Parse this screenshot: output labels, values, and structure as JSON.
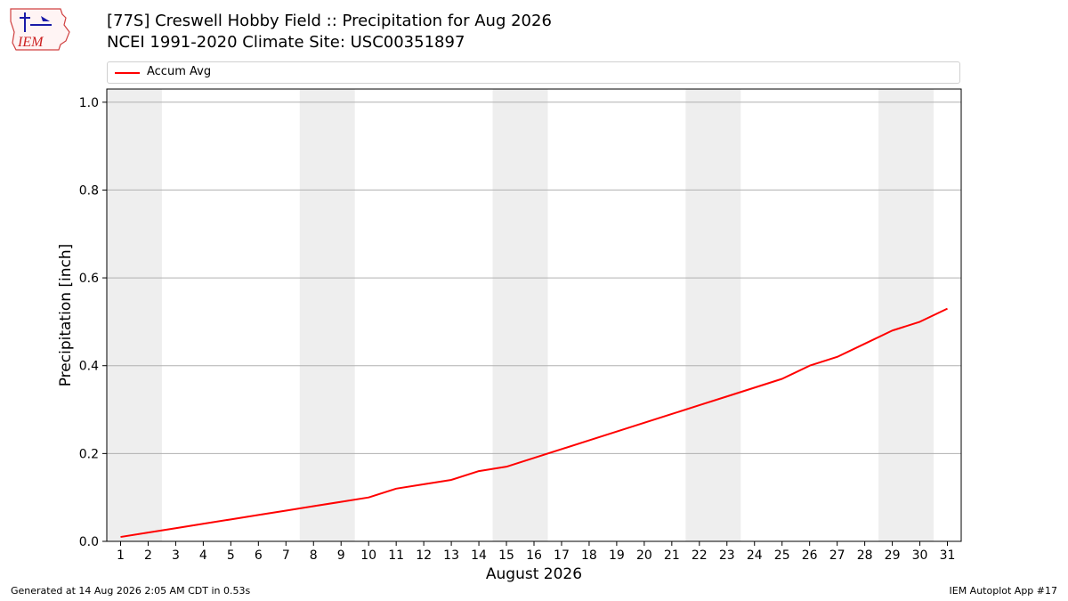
{
  "header": {
    "title_line1": "[77S] Creswell Hobby Field :: Precipitation for Aug 2026",
    "title_line2": "NCEI 1991-2020 Climate Site: USC00351897",
    "logo_text": "IEM"
  },
  "legend": {
    "label": "Accum Avg",
    "color": "#ff0000"
  },
  "footer": {
    "left": "Generated at 14 Aug 2026 2:05 AM CDT in 0.53s",
    "right": "IEM Autoplot App #17"
  },
  "chart_data": {
    "type": "line",
    "xlabel": "August 2026",
    "ylabel": "Precipitation [inch]",
    "xlim": [
      0.5,
      31.5
    ],
    "ylim": [
      0,
      1.03
    ],
    "yticks": [
      0.0,
      0.2,
      0.4,
      0.6,
      0.8,
      1.0
    ],
    "ytick_labels": [
      "0.0",
      "0.2",
      "0.4",
      "0.6",
      "0.8",
      "1.0"
    ],
    "x": [
      1,
      2,
      3,
      4,
      5,
      6,
      7,
      8,
      9,
      10,
      11,
      12,
      13,
      14,
      15,
      16,
      17,
      18,
      19,
      20,
      21,
      22,
      23,
      24,
      25,
      26,
      27,
      28,
      29,
      30,
      31
    ],
    "series": [
      {
        "name": "Accum Avg",
        "color": "#ff0000",
        "values": [
          0.01,
          0.02,
          0.03,
          0.04,
          0.05,
          0.06,
          0.07,
          0.08,
          0.09,
          0.1,
          0.12,
          0.13,
          0.14,
          0.16,
          0.17,
          0.19,
          0.21,
          0.23,
          0.25,
          0.27,
          0.29,
          0.31,
          0.33,
          0.35,
          0.37,
          0.4,
          0.42,
          0.45,
          0.48,
          0.5,
          0.53
        ]
      }
    ],
    "weekend_bands": [
      [
        0.5,
        2.5
      ],
      [
        7.5,
        9.5
      ],
      [
        14.5,
        16.5
      ],
      [
        21.5,
        23.5
      ],
      [
        28.5,
        30.5
      ]
    ],
    "weekend_color": "#eeeeee",
    "grid": "y"
  }
}
